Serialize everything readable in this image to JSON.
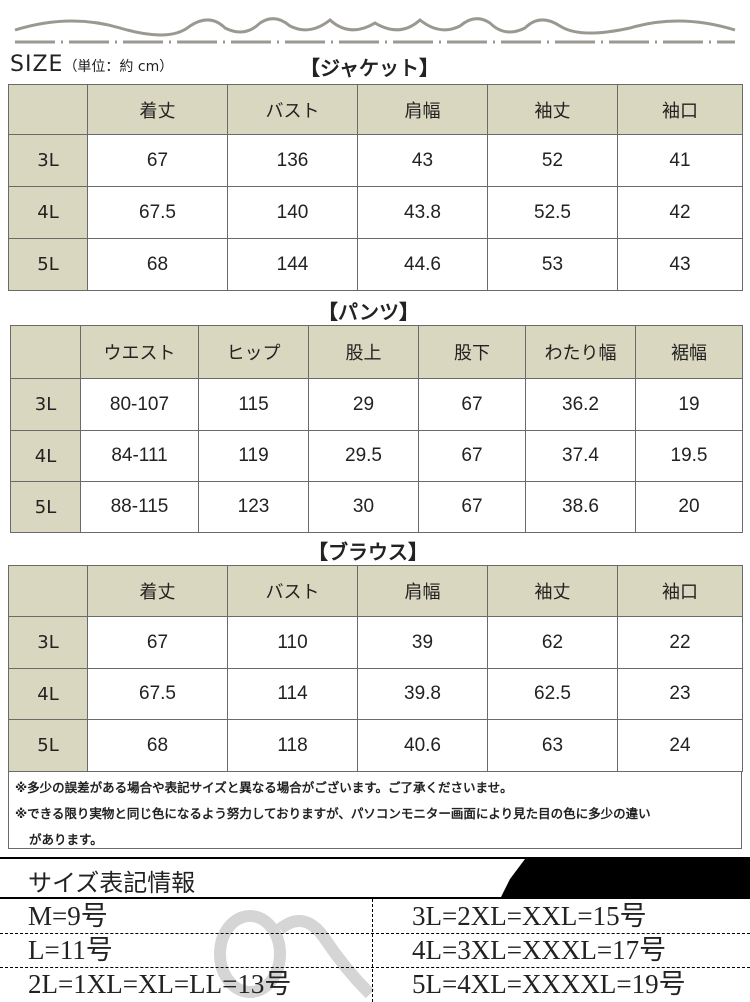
{
  "header": {
    "size_label": "SIZE",
    "unit_label": "（単位：約 cm）"
  },
  "jacket": {
    "title": "【ジャケット】",
    "columns": [
      "",
      "着丈",
      "バスト",
      "肩幅",
      "袖丈",
      "袖口"
    ],
    "rows": [
      [
        "3L",
        "67",
        "136",
        "43",
        "52",
        "41"
      ],
      [
        "4L",
        "67.5",
        "140",
        "43.8",
        "52.5",
        "42"
      ],
      [
        "5L",
        "68",
        "144",
        "44.6",
        "53",
        "43"
      ]
    ]
  },
  "pants": {
    "title": "【パンツ】",
    "columns": [
      "",
      "ウエスト",
      "ヒップ",
      "股上",
      "股下",
      "わたり幅",
      "裾幅"
    ],
    "rows": [
      [
        "3L",
        "80-107",
        "115",
        "29",
        "67",
        "36.2",
        "19"
      ],
      [
        "4L",
        "84-111",
        "119",
        "29.5",
        "67",
        "37.4",
        "19.5"
      ],
      [
        "5L",
        "88-115",
        "123",
        "30",
        "67",
        "38.6",
        "20"
      ]
    ]
  },
  "blouse": {
    "title": "【ブラウス】",
    "columns": [
      "",
      "着丈",
      "バスト",
      "肩幅",
      "袖丈",
      "袖口"
    ],
    "rows": [
      [
        "3L",
        "67",
        "110",
        "39",
        "62",
        "22"
      ],
      [
        "4L",
        "67.5",
        "114",
        "39.8",
        "62.5",
        "23"
      ],
      [
        "5L",
        "68",
        "118",
        "40.6",
        "63",
        "24"
      ]
    ]
  },
  "notes": [
    "※多少の誤差がある場合や表記サイズと異なる場合がございます。ご了承くださいませ。",
    "※できる限り実物と同じ色になるよう努力しておりますが、パソコンモニター画面により見た目の色に多少の違い",
    "があります。"
  ],
  "size_info": {
    "title": "サイズ表記情報",
    "left": [
      "M=9号",
      "L=11号",
      "2L=1XL=XL=LL=13号"
    ],
    "right": [
      "3L=2XL=XXL=15号",
      "4L=3XL=XXXL=17号",
      "5L=4XL=XXXXL=19号"
    ]
  },
  "colors": {
    "header_bg": "#d9d7bf",
    "border": "#6a6a6a",
    "ornament": "#9a9890"
  }
}
